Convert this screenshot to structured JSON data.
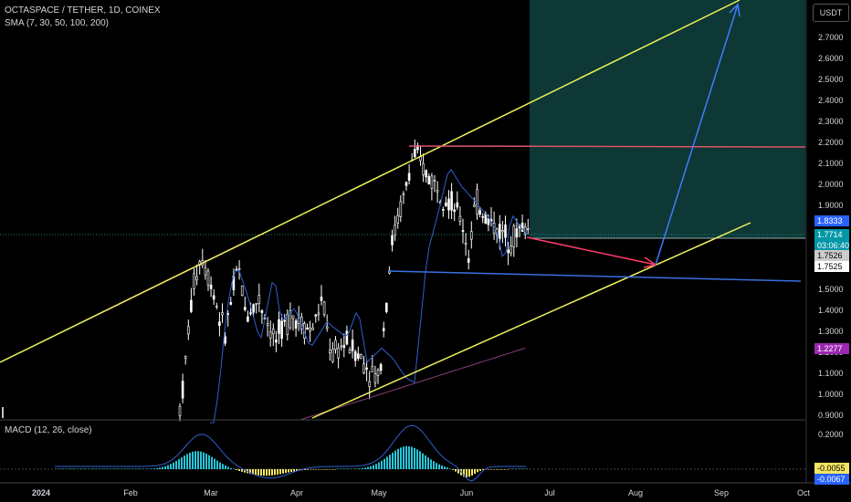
{
  "header": {
    "title": "OCTASPACE / TETHER, 1D, COINEX",
    "sma_label": "SMA (7, 30, 50, 100, 200)",
    "macd_label": "MACD (12, 26, close)",
    "currency": "USDT"
  },
  "colors": {
    "background": "#000000",
    "candle": "#ffffff",
    "sma_blue": "#2f5fd0",
    "sma_purple": "#8a3d7a",
    "channel": "#f0f05a",
    "resistance": "#e0546a",
    "support": "#3a6fe0",
    "zone": "#0e3b38",
    "arrow_red": "#ff3b6b",
    "arrow_blue": "#3f7bff",
    "macd_line": "#2f5fd0",
    "hist_pos": "#26c6da",
    "hist_neg": "#f5e663"
  },
  "price_badges": [
    {
      "value": "1.8333",
      "bg": "#2962ff",
      "fg": "#ffffff"
    },
    {
      "value": "1.7714",
      "bg": "#0097a7",
      "fg": "#ffffff",
      "sub": "03:06:40"
    },
    {
      "value": "1.7526",
      "bg": "#cccccc",
      "fg": "#000000"
    },
    {
      "value": "1.7525",
      "bg": "#ffffff",
      "fg": "#000000"
    },
    {
      "value": "1.2277",
      "bg": "#9c27b0",
      "fg": "#ffffff"
    }
  ],
  "macd_badges": [
    {
      "value": "-0.0055",
      "bg": "#f5e663",
      "fg": "#000000"
    },
    {
      "value": "-0.0067",
      "bg": "#2962ff",
      "fg": "#ffffff"
    }
  ],
  "chart_data": {
    "type": "candlestick",
    "y_axis_ticks": [
      "2.7000",
      "2.6000",
      "2.5000",
      "2.4000",
      "2.3000",
      "2.2000",
      "2.1000",
      "2.0000",
      "1.9000",
      "1.5000",
      "1.4000",
      "1.3000",
      "1.2000",
      "1.1000",
      "1.0000",
      "0.9000"
    ],
    "macd_axis_ticks": [
      "0.2000"
    ],
    "x_axis_ticks": [
      "2024",
      "Feb",
      "Mar",
      "Apr",
      "May",
      "Jun",
      "Jul",
      "Aug",
      "Sep",
      "Oct"
    ],
    "ylim": [
      0.9,
      2.8
    ],
    "last_price": 1.7714,
    "countdown": "03:06:40",
    "resistance_level": 2.18,
    "support_level": 1.58,
    "target_zone": [
      1.75,
      2.8
    ],
    "sma_last": 1.2277,
    "macd_value": -0.0055,
    "macd_signal": -0.0067
  }
}
